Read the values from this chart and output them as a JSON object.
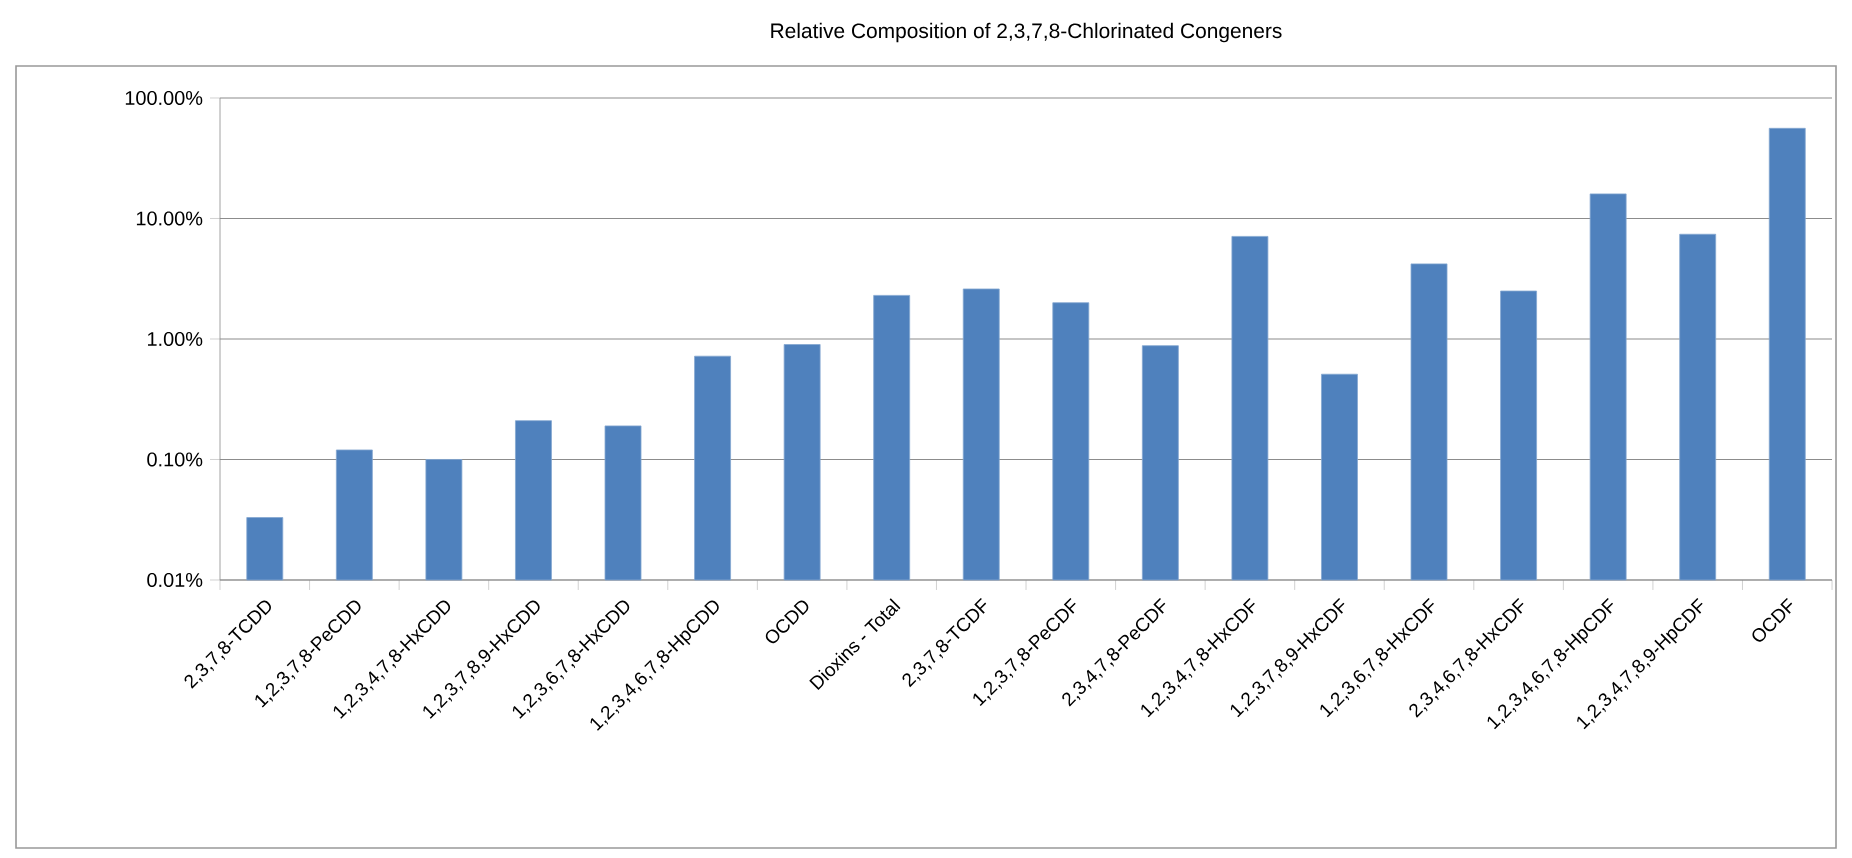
{
  "chart_data": {
    "type": "bar",
    "title": "Relative Composition of 2,3,7,8-Chlorinated Congeners",
    "categories": [
      "2,3,7,8-TCDD",
      "1,2,3,7,8-PeCDD",
      "1,2,3,4,7,8-HxCDD",
      "1,2,3,7,8,9-HxCDD",
      "1,2,3,6,7,8-HxCDD",
      "1,2,3,4,6,7,8-HpCDD",
      "OCDD",
      "Dioxins - Total",
      "2,3,7,8-TCDF",
      "1,2,3,7,8-PeCDF",
      "2,3,4,7,8-PeCDF",
      "1,2,3,4,7,8-HxCDF",
      "1,2,3,7,8,9-HxCDF",
      "1,2,3,6,7,8-HxCDF",
      "2,3,4,6,7,8-HxCDF",
      "1,2,3,4,6,7,8-HpCDF",
      "1,2,3,4,7,8,9-HpCDF",
      "OCDF"
    ],
    "values": [
      0.033,
      0.12,
      0.1,
      0.21,
      0.19,
      0.72,
      0.9,
      2.3,
      2.6,
      2.0,
      0.88,
      7.1,
      0.51,
      4.2,
      2.5,
      16,
      7.4,
      56
    ],
    "color": "#4f81bd",
    "log": "y",
    "ylim": [
      0.01,
      100
    ],
    "yticks": [
      {
        "value": 0.01,
        "label": "0.01%"
      },
      {
        "value": 0.1,
        "label": "0.10%"
      },
      {
        "value": 1,
        "label": "1.00%"
      },
      {
        "value": 10,
        "label": "10.00%"
      },
      {
        "value": 100,
        "label": "100.00%"
      }
    ],
    "grid": "y"
  }
}
